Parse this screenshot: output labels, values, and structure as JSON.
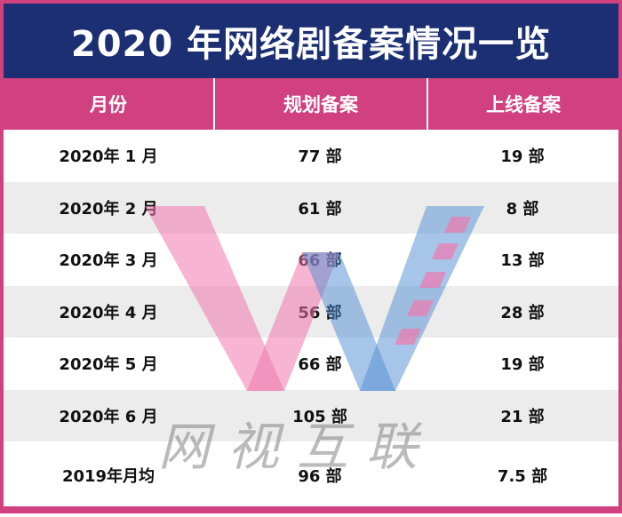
{
  "title": "2020 年网络剧备案情况一览",
  "columns": [
    "月份",
    "规划备案",
    "上线备案"
  ],
  "rows": [
    {
      "month": "2020年 1 月",
      "planned": "77 部",
      "online": "19 部"
    },
    {
      "month": "2020年 2 月",
      "planned": "61 部",
      "online": "8 部"
    },
    {
      "month": "2020年 3 月",
      "planned": "66 部",
      "online": "13 部"
    },
    {
      "month": "2020年 4 月",
      "planned": "56 部",
      "online": "28 部"
    },
    {
      "month": "2020年 5 月",
      "planned": "66 部",
      "online": "19 部"
    },
    {
      "month": "2020年 6 月",
      "planned": "105 部",
      "online": "21 部"
    },
    {
      "month": "2019年月均",
      "planned": "96 部",
      "online": "7.5 部"
    }
  ],
  "watermark": {
    "text": "网视互联"
  },
  "colors": {
    "title_bg": "#1c2f72",
    "header_bg": "#d2417f",
    "stripe": "#ececec"
  }
}
